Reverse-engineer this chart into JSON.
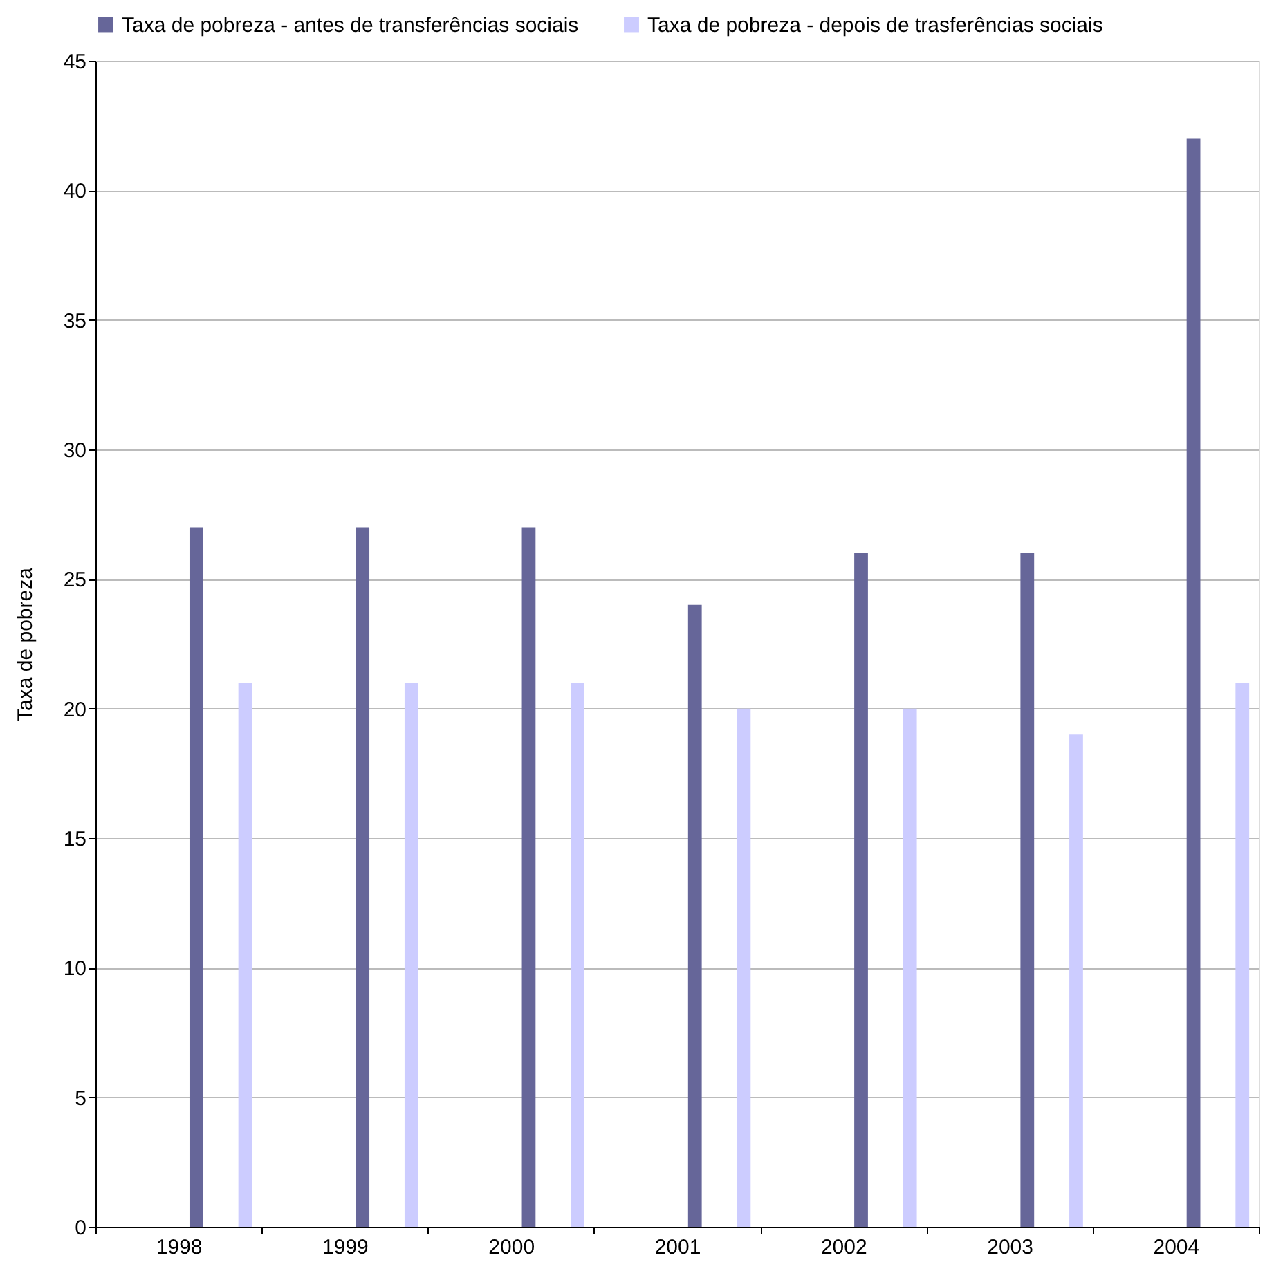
{
  "chart_data": {
    "type": "bar",
    "ylabel": "Taxa de pobreza",
    "categories": [
      "1998",
      "1999",
      "2000",
      "2001",
      "2002",
      "2003",
      "2004"
    ],
    "series": [
      {
        "name": "Taxa de pobreza - antes de transferências sociais",
        "color": "#666699",
        "values": [
          27,
          27,
          27,
          24,
          26,
          26,
          42
        ]
      },
      {
        "name": "Taxa de pobreza - depois de trasferências sociais",
        "color": "#ccccff",
        "values": [
          21,
          21,
          21,
          20,
          20,
          19,
          21
        ]
      }
    ],
    "ylim": [
      0,
      45
    ],
    "yticks": [
      0,
      5,
      10,
      15,
      20,
      25,
      30,
      35,
      40,
      45
    ],
    "grid": "y",
    "legend": "top"
  }
}
